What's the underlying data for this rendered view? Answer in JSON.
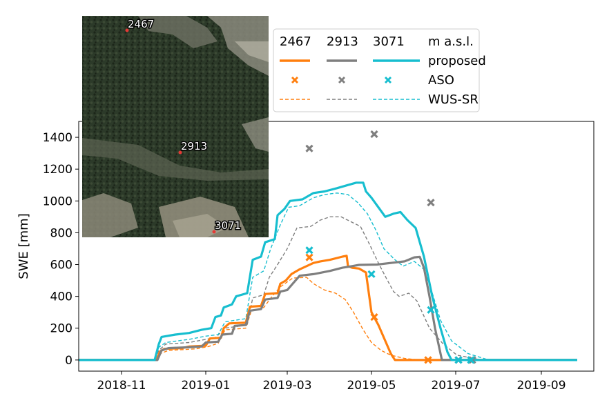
{
  "colors": {
    "s2467": "#ff7f0e",
    "s2913": "#7f7f7f",
    "s3071": "#17becf"
  },
  "chart_data": {
    "type": "line",
    "title": "",
    "xlabel": "",
    "ylabel": "SWE [mm]",
    "x_range": [
      "2018-10-01",
      "2019-10-09"
    ],
    "ylim": [
      -70,
      1500
    ],
    "yticks": [
      0,
      200,
      400,
      600,
      800,
      1000,
      1200,
      1400
    ],
    "xticks": [
      {
        "date": "2018-11-01",
        "label": "2018-11"
      },
      {
        "date": "2019-01-01",
        "label": "2019-01"
      },
      {
        "date": "2019-03-01",
        "label": "2019-03"
      },
      {
        "date": "2019-05-01",
        "label": "2019-05"
      },
      {
        "date": "2019-07-01",
        "label": "2019-07"
      },
      {
        "date": "2019-09-01",
        "label": "2019-09"
      }
    ],
    "legend": {
      "placement": "top",
      "headers": [
        "2467",
        "2913",
        "3071",
        "m a.s.l."
      ],
      "rows": [
        "proposed",
        "ASO",
        "WUS-SR"
      ]
    },
    "inset": {
      "description_placement": "top-left",
      "sites": [
        {
          "label": "2467"
        },
        {
          "label": "2913"
        },
        {
          "label": "3071"
        }
      ]
    },
    "series": [
      {
        "elevation": "2467",
        "name": "proposed",
        "style": "solid",
        "color": "#ff7f0e",
        "points": [
          [
            "2018-10-01",
            0
          ],
          [
            "2018-11-25",
            0
          ],
          [
            "2018-11-27",
            15
          ],
          [
            "2018-11-29",
            55
          ],
          [
            "2018-12-02",
            70
          ],
          [
            "2018-12-15",
            75
          ],
          [
            "2018-12-20",
            85
          ],
          [
            "2019-01-01",
            90
          ],
          [
            "2019-01-04",
            135
          ],
          [
            "2019-01-12",
            140
          ],
          [
            "2019-01-14",
            200
          ],
          [
            "2019-01-18",
            230
          ],
          [
            "2019-01-30",
            235
          ],
          [
            "2019-02-02",
            335
          ],
          [
            "2019-02-10",
            340
          ],
          [
            "2019-02-13",
            415
          ],
          [
            "2019-02-22",
            420
          ],
          [
            "2019-02-24",
            480
          ],
          [
            "2019-02-28",
            500
          ],
          [
            "2019-03-04",
            540
          ],
          [
            "2019-03-10",
            570
          ],
          [
            "2019-03-15",
            590
          ],
          [
            "2019-03-20",
            610
          ],
          [
            "2019-03-25",
            620
          ],
          [
            "2019-04-01",
            630
          ],
          [
            "2019-04-10",
            650
          ],
          [
            "2019-04-13",
            655
          ],
          [
            "2019-04-14",
            590
          ],
          [
            "2019-04-17",
            580
          ],
          [
            "2019-04-22",
            575
          ],
          [
            "2019-04-27",
            550
          ],
          [
            "2019-05-01",
            300
          ],
          [
            "2019-05-06",
            220
          ],
          [
            "2019-05-15",
            40
          ],
          [
            "2019-05-18",
            0
          ],
          [
            "2019-09-27",
            0
          ]
        ]
      },
      {
        "elevation": "2913",
        "name": "proposed",
        "style": "solid",
        "color": "#7f7f7f",
        "points": [
          [
            "2018-10-01",
            0
          ],
          [
            "2018-11-27",
            0
          ],
          [
            "2018-11-30",
            60
          ],
          [
            "2018-12-05",
            75
          ],
          [
            "2018-12-20",
            80
          ],
          [
            "2018-12-29",
            85
          ],
          [
            "2019-01-01",
            110
          ],
          [
            "2019-01-10",
            115
          ],
          [
            "2019-01-13",
            160
          ],
          [
            "2019-01-20",
            165
          ],
          [
            "2019-01-22",
            215
          ],
          [
            "2019-01-30",
            220
          ],
          [
            "2019-02-02",
            310
          ],
          [
            "2019-02-10",
            320
          ],
          [
            "2019-02-13",
            380
          ],
          [
            "2019-02-22",
            390
          ],
          [
            "2019-02-24",
            430
          ],
          [
            "2019-03-01",
            440
          ],
          [
            "2019-03-05",
            480
          ],
          [
            "2019-03-10",
            530
          ],
          [
            "2019-03-20",
            540
          ],
          [
            "2019-04-01",
            560
          ],
          [
            "2019-04-10",
            580
          ],
          [
            "2019-04-17",
            590
          ],
          [
            "2019-04-22",
            598
          ],
          [
            "2019-05-05",
            600
          ],
          [
            "2019-05-15",
            610
          ],
          [
            "2019-05-25",
            620
          ],
          [
            "2019-06-01",
            645
          ],
          [
            "2019-06-05",
            648
          ],
          [
            "2019-06-08",
            580
          ],
          [
            "2019-06-12",
            400
          ],
          [
            "2019-06-16",
            200
          ],
          [
            "2019-06-19",
            80
          ],
          [
            "2019-06-21",
            0
          ],
          [
            "2019-09-27",
            0
          ]
        ]
      },
      {
        "elevation": "3071",
        "name": "proposed",
        "style": "solid",
        "color": "#17becf",
        "points": [
          [
            "2018-10-01",
            0
          ],
          [
            "2018-11-25",
            0
          ],
          [
            "2018-11-28",
            100
          ],
          [
            "2018-11-30",
            145
          ],
          [
            "2018-12-10",
            160
          ],
          [
            "2018-12-20",
            170
          ],
          [
            "2018-12-29",
            190
          ],
          [
            "2019-01-05",
            200
          ],
          [
            "2019-01-08",
            270
          ],
          [
            "2019-01-12",
            280
          ],
          [
            "2019-01-14",
            330
          ],
          [
            "2019-01-20",
            350
          ],
          [
            "2019-01-23",
            400
          ],
          [
            "2019-01-31",
            420
          ],
          [
            "2019-02-04",
            630
          ],
          [
            "2019-02-10",
            650
          ],
          [
            "2019-02-13",
            740
          ],
          [
            "2019-02-20",
            760
          ],
          [
            "2019-02-22",
            910
          ],
          [
            "2019-02-27",
            950
          ],
          [
            "2019-03-03",
            1000
          ],
          [
            "2019-03-12",
            1010
          ],
          [
            "2019-03-20",
            1050
          ],
          [
            "2019-03-28",
            1060
          ],
          [
            "2019-04-06",
            1080
          ],
          [
            "2019-04-14",
            1100
          ],
          [
            "2019-04-20",
            1115
          ],
          [
            "2019-04-25",
            1115
          ],
          [
            "2019-04-27",
            1060
          ],
          [
            "2019-05-01",
            1020
          ],
          [
            "2019-05-06",
            960
          ],
          [
            "2019-05-11",
            900
          ],
          [
            "2019-05-17",
            920
          ],
          [
            "2019-05-22",
            930
          ],
          [
            "2019-05-27",
            880
          ],
          [
            "2019-06-02",
            830
          ],
          [
            "2019-06-08",
            650
          ],
          [
            "2019-06-14",
            400
          ],
          [
            "2019-06-20",
            200
          ],
          [
            "2019-06-25",
            50
          ],
          [
            "2019-06-28",
            0
          ],
          [
            "2019-09-27",
            0
          ]
        ]
      },
      {
        "elevation": "2467",
        "name": "WUS-SR",
        "style": "dashed",
        "color": "#ff7f0e",
        "points": [
          [
            "2018-10-01",
            0
          ],
          [
            "2018-11-25",
            0
          ],
          [
            "2018-11-29",
            40
          ],
          [
            "2018-12-05",
            60
          ],
          [
            "2018-12-25",
            70
          ],
          [
            "2019-01-03",
            85
          ],
          [
            "2019-01-10",
            105
          ],
          [
            "2019-01-15",
            190
          ],
          [
            "2019-01-30",
            200
          ],
          [
            "2019-02-03",
            310
          ],
          [
            "2019-02-12",
            330
          ],
          [
            "2019-02-18",
            400
          ],
          [
            "2019-02-24",
            460
          ],
          [
            "2019-03-05",
            515
          ],
          [
            "2019-03-15",
            520
          ],
          [
            "2019-03-20",
            480
          ],
          [
            "2019-03-28",
            440
          ],
          [
            "2019-04-05",
            420
          ],
          [
            "2019-04-12",
            380
          ],
          [
            "2019-04-18",
            300
          ],
          [
            "2019-04-25",
            190
          ],
          [
            "2019-05-01",
            110
          ],
          [
            "2019-05-08",
            60
          ],
          [
            "2019-05-15",
            30
          ],
          [
            "2019-05-25",
            10
          ],
          [
            "2019-06-05",
            0
          ],
          [
            "2019-09-27",
            0
          ]
        ]
      },
      {
        "elevation": "2913",
        "name": "WUS-SR",
        "style": "dashed",
        "color": "#7f7f7f",
        "points": [
          [
            "2018-10-01",
            0
          ],
          [
            "2018-11-25",
            0
          ],
          [
            "2018-11-28",
            60
          ],
          [
            "2018-12-03",
            100
          ],
          [
            "2018-12-20",
            110
          ],
          [
            "2019-01-01",
            130
          ],
          [
            "2019-01-08",
            140
          ],
          [
            "2019-01-15",
            200
          ],
          [
            "2019-01-31",
            220
          ],
          [
            "2019-02-04",
            390
          ],
          [
            "2019-02-12",
            410
          ],
          [
            "2019-02-16",
            520
          ],
          [
            "2019-02-22",
            600
          ],
          [
            "2019-03-01",
            700
          ],
          [
            "2019-03-08",
            830
          ],
          [
            "2019-03-18",
            840
          ],
          [
            "2019-03-25",
            880
          ],
          [
            "2019-04-01",
            900
          ],
          [
            "2019-04-09",
            900
          ],
          [
            "2019-04-16",
            870
          ],
          [
            "2019-04-23",
            840
          ],
          [
            "2019-04-30",
            720
          ],
          [
            "2019-05-06",
            610
          ],
          [
            "2019-05-12",
            510
          ],
          [
            "2019-05-17",
            430
          ],
          [
            "2019-05-21",
            400
          ],
          [
            "2019-05-28",
            420
          ],
          [
            "2019-06-03",
            370
          ],
          [
            "2019-06-12",
            200
          ],
          [
            "2019-06-22",
            100
          ],
          [
            "2019-07-02",
            30
          ],
          [
            "2019-07-20",
            0
          ],
          [
            "2019-09-27",
            0
          ]
        ]
      },
      {
        "elevation": "3071",
        "name": "WUS-SR",
        "style": "dashed",
        "color": "#17becf",
        "points": [
          [
            "2018-10-01",
            0
          ],
          [
            "2018-11-25",
            0
          ],
          [
            "2018-11-28",
            80
          ],
          [
            "2018-12-03",
            110
          ],
          [
            "2018-12-20",
            130
          ],
          [
            "2019-01-01",
            150
          ],
          [
            "2019-01-10",
            160
          ],
          [
            "2019-01-15",
            240
          ],
          [
            "2019-01-30",
            260
          ],
          [
            "2019-02-04",
            520
          ],
          [
            "2019-02-12",
            560
          ],
          [
            "2019-02-17",
            700
          ],
          [
            "2019-02-24",
            850
          ],
          [
            "2019-03-02",
            960
          ],
          [
            "2019-03-10",
            970
          ],
          [
            "2019-03-20",
            1020
          ],
          [
            "2019-03-28",
            1040
          ],
          [
            "2019-04-06",
            1050
          ],
          [
            "2019-04-14",
            1040
          ],
          [
            "2019-04-21",
            990
          ],
          [
            "2019-04-28",
            920
          ],
          [
            "2019-05-04",
            820
          ],
          [
            "2019-05-10",
            700
          ],
          [
            "2019-05-18",
            630
          ],
          [
            "2019-05-24",
            590
          ],
          [
            "2019-06-01",
            620
          ],
          [
            "2019-06-08",
            570
          ],
          [
            "2019-06-13",
            450
          ],
          [
            "2019-06-20",
            250
          ],
          [
            "2019-06-28",
            120
          ],
          [
            "2019-07-10",
            40
          ],
          [
            "2019-07-25",
            0
          ],
          [
            "2019-09-27",
            0
          ]
        ]
      }
    ],
    "aso": [
      {
        "elevation": "2467",
        "color": "#ff7f0e",
        "points": [
          [
            "2019-03-17",
            645
          ],
          [
            "2019-05-03",
            270
          ],
          [
            "2019-06-11",
            0
          ]
        ]
      },
      {
        "elevation": "2913",
        "color": "#7f7f7f",
        "points": [
          [
            "2019-03-17",
            1330
          ],
          [
            "2019-05-03",
            1420
          ],
          [
            "2019-06-13",
            990
          ],
          [
            "2019-07-03",
            0
          ],
          [
            "2019-07-13",
            0
          ]
        ]
      },
      {
        "elevation": "3071",
        "color": "#17becf",
        "points": [
          [
            "2019-03-17",
            690
          ],
          [
            "2019-05-01",
            540
          ],
          [
            "2019-06-13",
            315
          ],
          [
            "2019-07-03",
            0
          ],
          [
            "2019-07-12",
            0
          ]
        ]
      }
    ]
  }
}
